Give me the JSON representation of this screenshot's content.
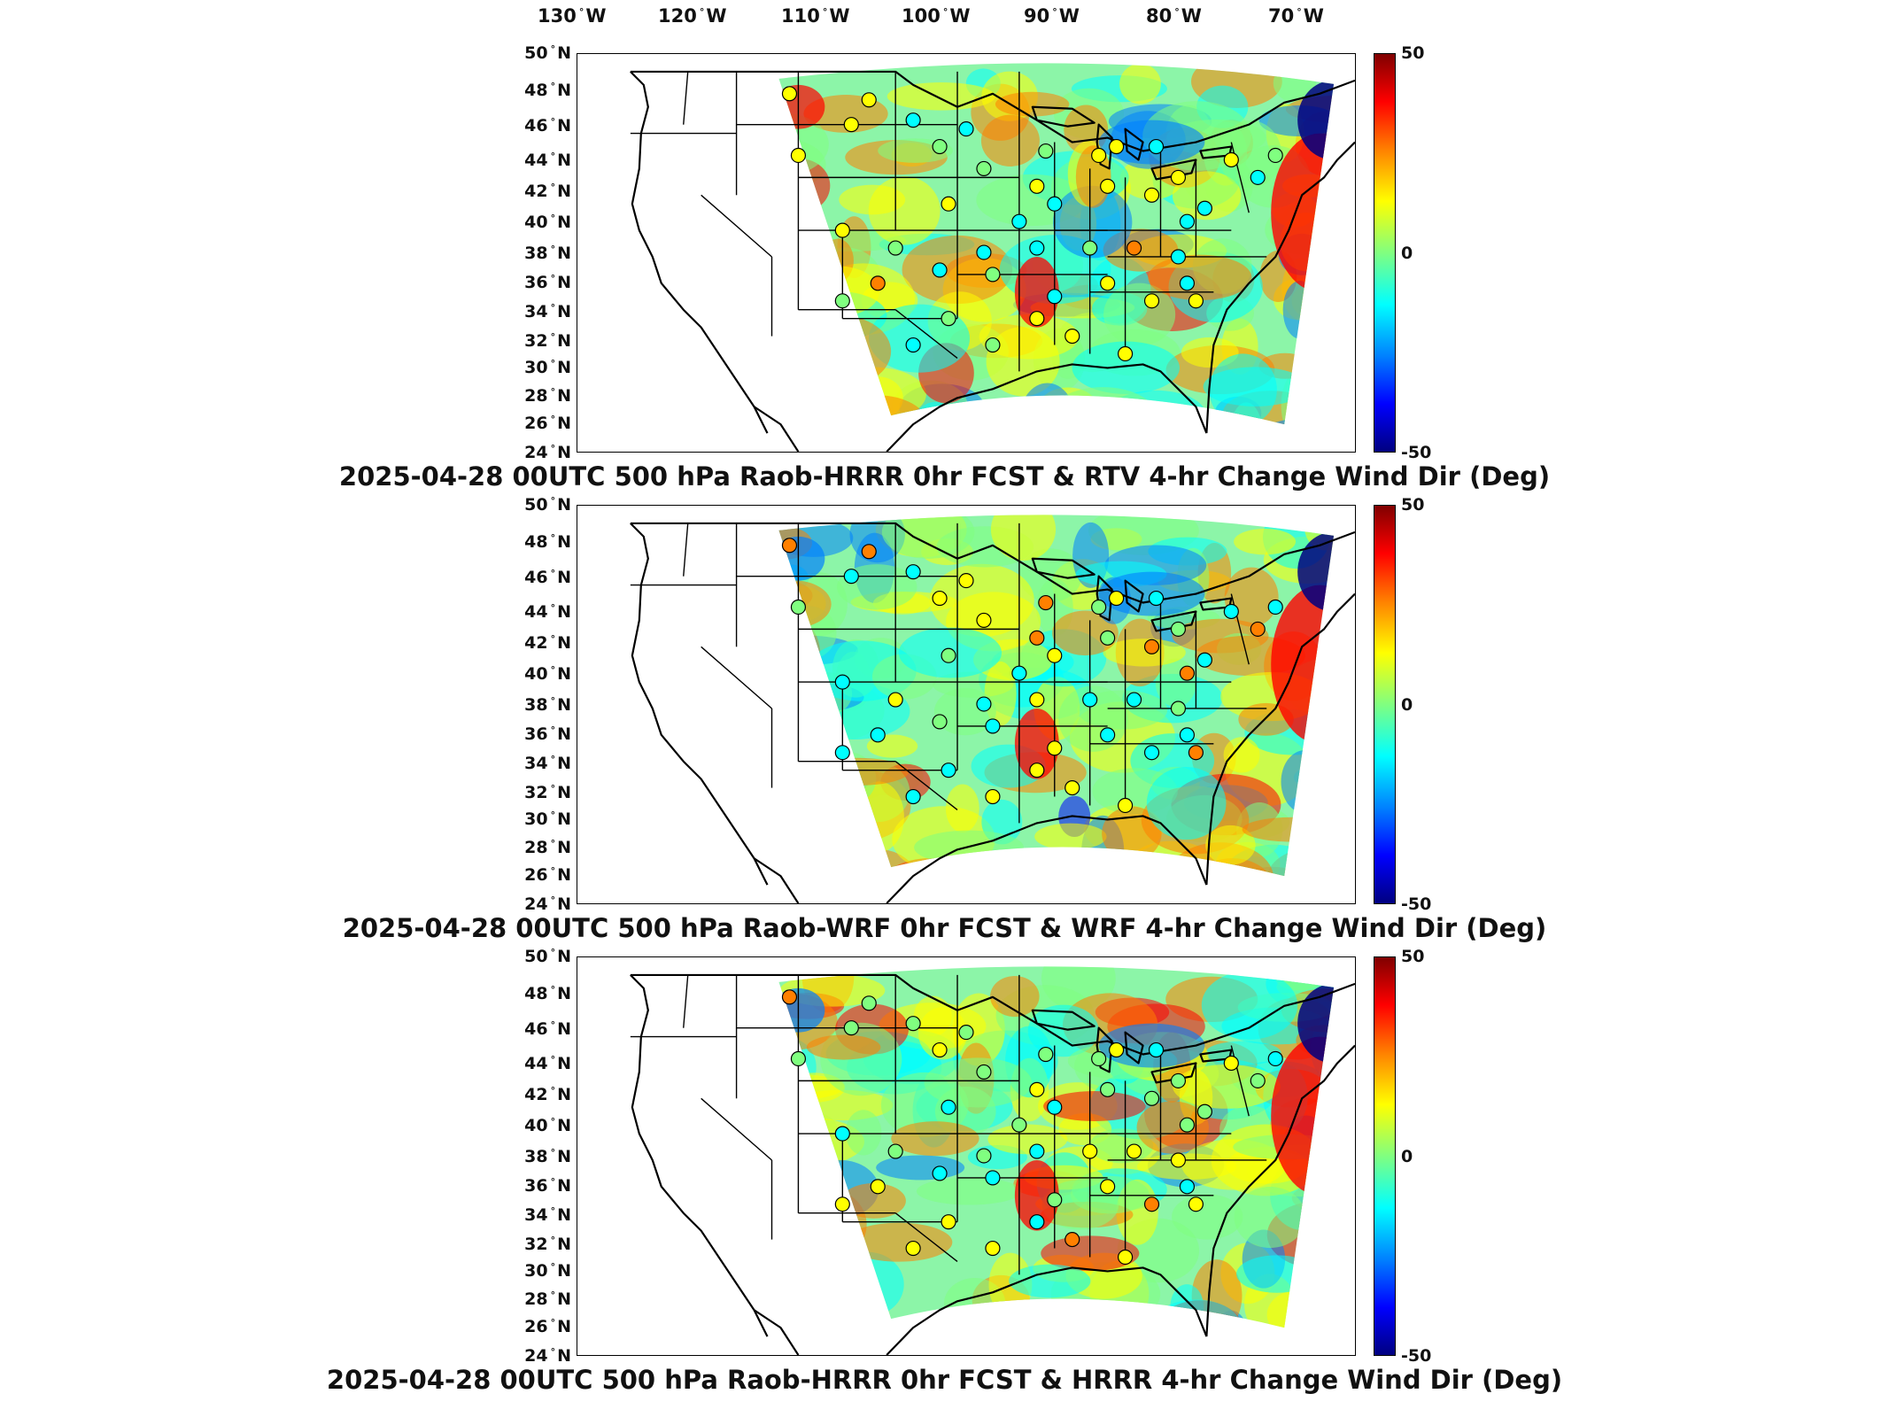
{
  "longitude_labels": [
    {
      "deg": "130",
      "dir": "W"
    },
    {
      "deg": "120",
      "dir": "W"
    },
    {
      "deg": "110",
      "dir": "W"
    },
    {
      "deg": "100",
      "dir": "W"
    },
    {
      "deg": "90",
      "dir": "W"
    },
    {
      "deg": "80",
      "dir": "W"
    },
    {
      "deg": "70",
      "dir": "W"
    }
  ],
  "latitude_labels": [
    {
      "deg": "50",
      "dir": "N"
    },
    {
      "deg": "48",
      "dir": "N"
    },
    {
      "deg": "46",
      "dir": "N"
    },
    {
      "deg": "44",
      "dir": "N"
    },
    {
      "deg": "42",
      "dir": "N"
    },
    {
      "deg": "40",
      "dir": "N"
    },
    {
      "deg": "38",
      "dir": "N"
    },
    {
      "deg": "36",
      "dir": "N"
    },
    {
      "deg": "34",
      "dir": "N"
    },
    {
      "deg": "32",
      "dir": "N"
    },
    {
      "deg": "30",
      "dir": "N"
    },
    {
      "deg": "28",
      "dir": "N"
    },
    {
      "deg": "26",
      "dir": "N"
    },
    {
      "deg": "24",
      "dir": "N"
    }
  ],
  "colorbar": {
    "max_label": "50",
    "mid_label": "0",
    "min_label": "-50",
    "colors": [
      "#800000",
      "#ff0000",
      "#ff8000",
      "#ffff00",
      "#80ff80",
      "#00ffff",
      "#0080ff",
      "#0000ff",
      "#000080"
    ]
  },
  "panels": [
    {
      "title": "2025-04-28 00UTC 500 hPa Raob-HRRR 0hr FCST & RTV 4-hr Change Wind Dir (Deg)"
    },
    {
      "title": "2025-04-28 00UTC 500 hPa Raob-WRF 0hr FCST & WRF 4-hr Change Wind Dir (Deg)"
    },
    {
      "title": "2025-04-28 00UTC 500 hPa Raob-HRRR 0hr FCST & HRRR 4-hr Change Wind Dir (Deg)"
    }
  ]
}
